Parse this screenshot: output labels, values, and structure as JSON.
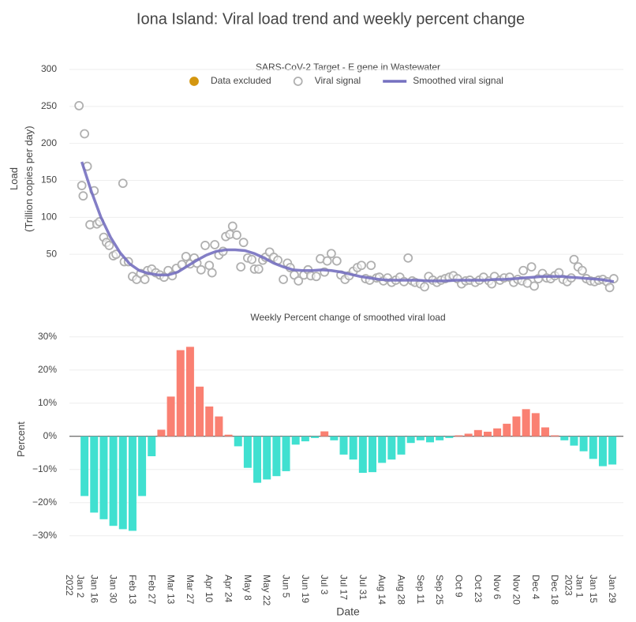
{
  "title": "Iona Island: Viral load trend and weekly percent change",
  "chart_data": [
    {
      "type": "scatter",
      "subtitle": "SARS-CoV-2 Target - E gene in Wastewater",
      "y_label": "Load\n(Trillion copies per day)",
      "xlim": [
        "2021-12-29",
        "2023-02-06"
      ],
      "ylim": [
        0,
        300
      ],
      "yticks": [
        50,
        100,
        150,
        200,
        250,
        300
      ],
      "grid": true,
      "series": [
        {
          "name": "Data excluded",
          "color": "#d4960f",
          "x": [],
          "values": []
        },
        {
          "name": "Viral signal",
          "color": "#b0b0b0",
          "x": [
            "2022-01-05",
            "2022-01-07",
            "2022-01-08",
            "2022-01-09",
            "2022-01-11",
            "2022-01-13",
            "2022-01-16",
            "2022-01-18",
            "2022-01-20",
            "2022-01-23",
            "2022-01-25",
            "2022-01-27",
            "2022-01-30",
            "2022-02-01",
            "2022-02-06",
            "2022-02-07",
            "2022-02-10",
            "2022-02-13",
            "2022-02-16",
            "2022-02-19",
            "2022-02-22",
            "2022-02-24",
            "2022-02-27",
            "2022-03-02",
            "2022-03-05",
            "2022-03-08",
            "2022-03-11",
            "2022-03-14",
            "2022-03-17",
            "2022-03-21",
            "2022-03-24",
            "2022-03-27",
            "2022-03-30",
            "2022-04-01",
            "2022-04-04",
            "2022-04-07",
            "2022-04-10",
            "2022-04-12",
            "2022-04-14",
            "2022-04-17",
            "2022-04-20",
            "2022-04-22",
            "2022-04-25",
            "2022-04-27",
            "2022-04-30",
            "2022-05-03",
            "2022-05-05",
            "2022-05-08",
            "2022-05-11",
            "2022-05-13",
            "2022-05-16",
            "2022-05-19",
            "2022-05-21",
            "2022-05-24",
            "2022-05-27",
            "2022-05-30",
            "2022-06-03",
            "2022-06-06",
            "2022-06-08",
            "2022-06-11",
            "2022-06-14",
            "2022-06-18",
            "2022-06-21",
            "2022-06-23",
            "2022-06-27",
            "2022-06-30",
            "2022-07-03",
            "2022-07-05",
            "2022-07-08",
            "2022-07-12",
            "2022-07-15",
            "2022-07-18",
            "2022-07-21",
            "2022-07-24",
            "2022-07-27",
            "2022-07-30",
            "2022-08-02",
            "2022-08-05",
            "2022-08-06",
            "2022-08-10",
            "2022-08-12",
            "2022-08-15",
            "2022-08-18",
            "2022-08-21",
            "2022-08-24",
            "2022-08-27",
            "2022-08-30",
            "2022-09-02",
            "2022-09-05",
            "2022-09-07",
            "2022-09-11",
            "2022-09-14",
            "2022-09-17",
            "2022-09-20",
            "2022-09-23",
            "2022-09-26",
            "2022-09-29",
            "2022-10-02",
            "2022-10-05",
            "2022-10-08",
            "2022-10-11",
            "2022-10-14",
            "2022-10-17",
            "2022-10-21",
            "2022-10-24",
            "2022-10-27",
            "2022-10-31",
            "2022-11-02",
            "2022-11-04",
            "2022-11-08",
            "2022-11-11",
            "2022-11-15",
            "2022-11-18",
            "2022-11-21",
            "2022-11-24",
            "2022-11-25",
            "2022-11-28",
            "2022-12-01",
            "2022-12-03",
            "2022-12-06",
            "2022-12-09",
            "2022-12-12",
            "2022-12-15",
            "2022-12-18",
            "2022-12-21",
            "2022-12-24",
            "2022-12-27",
            "2022-12-30",
            "2023-01-01",
            "2023-01-04",
            "2023-01-07",
            "2023-01-10",
            "2023-01-13",
            "2023-01-16",
            "2023-01-19",
            "2023-01-22",
            "2023-01-25",
            "2023-01-27",
            "2023-01-30"
          ],
          "values": [
            251,
            143,
            129,
            213,
            169,
            90,
            136,
            91,
            94,
            73,
            66,
            62,
            48,
            50,
            146,
            40,
            40,
            20,
            16,
            24,
            16,
            28,
            30,
            25,
            22,
            19,
            28,
            21,
            31,
            36,
            47,
            37,
            45,
            38,
            29,
            62,
            35,
            25,
            63,
            49,
            54,
            74,
            77,
            88,
            76,
            33,
            66,
            45,
            43,
            30,
            30,
            42,
            46,
            53,
            46,
            42,
            16,
            38,
            32,
            22,
            14,
            22,
            29,
            21,
            20,
            44,
            26,
            41,
            51,
            41,
            22,
            16,
            21,
            27,
            32,
            35,
            17,
            15,
            35,
            18,
            19,
            14,
            18,
            12,
            15,
            19,
            13,
            45,
            14,
            12,
            10,
            6,
            20,
            15,
            12,
            15,
            17,
            19,
            21,
            17,
            10,
            14,
            15,
            12,
            15,
            19,
            14,
            10,
            20,
            15,
            18,
            19,
            12,
            16,
            14,
            28,
            11,
            33,
            7,
            17,
            24,
            18,
            17,
            21,
            25,
            16,
            13,
            18,
            43,
            33,
            28,
            17,
            14,
            13,
            15,
            16,
            13,
            5,
            17
          ]
        },
        {
          "name": "Smoothed viral signal",
          "color": "#7570c0",
          "type": "line",
          "x": [
            "2022-01-07",
            "2022-01-14",
            "2022-01-21",
            "2022-01-28",
            "2022-02-04",
            "2022-02-11",
            "2022-02-18",
            "2022-02-25",
            "2022-03-04",
            "2022-03-11",
            "2022-03-18",
            "2022-03-25",
            "2022-04-01",
            "2022-04-08",
            "2022-04-15",
            "2022-04-22",
            "2022-04-29",
            "2022-05-06",
            "2022-05-13",
            "2022-05-20",
            "2022-05-27",
            "2022-06-03",
            "2022-06-10",
            "2022-06-17",
            "2022-06-24",
            "2022-07-01",
            "2022-07-08",
            "2022-07-15",
            "2022-07-22",
            "2022-07-29",
            "2022-08-05",
            "2022-08-12",
            "2022-08-19",
            "2022-08-26",
            "2022-09-02",
            "2022-09-09",
            "2022-09-16",
            "2022-09-23",
            "2022-09-30",
            "2022-10-07",
            "2022-10-14",
            "2022-10-21",
            "2022-10-28",
            "2022-11-04",
            "2022-11-11",
            "2022-11-18",
            "2022-11-25",
            "2022-12-02",
            "2022-12-09",
            "2022-12-16",
            "2022-12-23",
            "2022-12-30",
            "2023-01-06",
            "2023-01-13",
            "2023-01-20",
            "2023-01-27",
            "2023-01-30"
          ],
          "values": [
            175,
            135,
            100,
            73,
            52,
            37,
            28,
            24,
            22,
            22,
            26,
            34,
            42,
            49,
            54,
            56,
            56,
            55,
            51,
            45,
            38,
            33,
            29,
            28,
            28,
            29,
            28,
            26,
            23,
            20,
            18,
            16,
            15,
            15,
            15,
            15,
            14,
            14,
            14,
            15,
            15,
            15,
            15,
            16,
            16,
            17,
            18,
            19,
            20,
            20,
            20,
            19,
            18,
            17,
            16,
            14,
            13
          ]
        }
      ]
    },
    {
      "type": "bar",
      "subtitle": "Weekly Percent change of smoothed viral load",
      "y_label": "Percent",
      "x_label": "Date",
      "xlim": [
        "2021-12-29",
        "2023-02-06"
      ],
      "ylim": [
        -36,
        34
      ],
      "yticks": [
        {
          "value": -30,
          "label": "−30%"
        },
        {
          "value": -20,
          "label": "−20%"
        },
        {
          "value": -10,
          "label": "−10%"
        },
        {
          "value": 0,
          "label": "0%"
        },
        {
          "value": 10,
          "label": "10%"
        },
        {
          "value": 20,
          "label": "20%"
        },
        {
          "value": 30,
          "label": "30%"
        }
      ],
      "xticks": [
        {
          "value": "2022-01-02",
          "label": "Jan 2\n2022"
        },
        {
          "value": "2022-01-16",
          "label": "Jan 16"
        },
        {
          "value": "2022-01-30",
          "label": "Jan 30"
        },
        {
          "value": "2022-02-13",
          "label": "Feb 13"
        },
        {
          "value": "2022-02-27",
          "label": "Feb 27"
        },
        {
          "value": "2022-03-13",
          "label": "Mar 13"
        },
        {
          "value": "2022-03-27",
          "label": "Mar 27"
        },
        {
          "value": "2022-04-10",
          "label": "Apr 10"
        },
        {
          "value": "2022-04-24",
          "label": "Apr 24"
        },
        {
          "value": "2022-05-08",
          "label": "May 8"
        },
        {
          "value": "2022-05-22",
          "label": "May 22"
        },
        {
          "value": "2022-06-05",
          "label": "Jun 5"
        },
        {
          "value": "2022-06-19",
          "label": "Jun 19"
        },
        {
          "value": "2022-07-03",
          "label": "Jul 3"
        },
        {
          "value": "2022-07-17",
          "label": "Jul 17"
        },
        {
          "value": "2022-07-31",
          "label": "Jul 31"
        },
        {
          "value": "2022-08-14",
          "label": "Aug 14"
        },
        {
          "value": "2022-08-28",
          "label": "Aug 28"
        },
        {
          "value": "2022-09-11",
          "label": "Sep 11"
        },
        {
          "value": "2022-09-25",
          "label": "Sep 25"
        },
        {
          "value": "2022-10-09",
          "label": "Oct 9"
        },
        {
          "value": "2022-10-23",
          "label": "Oct 23"
        },
        {
          "value": "2022-11-06",
          "label": "Nov 6"
        },
        {
          "value": "2022-11-20",
          "label": "Nov 20"
        },
        {
          "value": "2022-12-04",
          "label": "Dec 4"
        },
        {
          "value": "2022-12-18",
          "label": "Dec 18"
        },
        {
          "value": "2023-01-01",
          "label": "Jan 1\n2023"
        },
        {
          "value": "2023-01-15",
          "label": "Jan 15"
        },
        {
          "value": "2023-01-29",
          "label": "Jan 29"
        }
      ],
      "grid": true,
      "positive_color": "#fa8072",
      "negative_color": "#40e0d0",
      "x": [
        "2022-01-09",
        "2022-01-16",
        "2022-01-23",
        "2022-01-30",
        "2022-02-06",
        "2022-02-13",
        "2022-02-20",
        "2022-02-27",
        "2022-03-06",
        "2022-03-13",
        "2022-03-20",
        "2022-03-27",
        "2022-04-03",
        "2022-04-10",
        "2022-04-17",
        "2022-04-24",
        "2022-05-01",
        "2022-05-08",
        "2022-05-15",
        "2022-05-22",
        "2022-05-29",
        "2022-06-05",
        "2022-06-12",
        "2022-06-19",
        "2022-06-26",
        "2022-07-03",
        "2022-07-10",
        "2022-07-17",
        "2022-07-24",
        "2022-07-31",
        "2022-08-07",
        "2022-08-14",
        "2022-08-21",
        "2022-08-28",
        "2022-09-04",
        "2022-09-11",
        "2022-09-18",
        "2022-09-25",
        "2022-10-02",
        "2022-10-09",
        "2022-10-16",
        "2022-10-23",
        "2022-10-30",
        "2022-11-06",
        "2022-11-13",
        "2022-11-20",
        "2022-11-27",
        "2022-12-04",
        "2022-12-11",
        "2022-12-18",
        "2022-12-25",
        "2023-01-01",
        "2023-01-08",
        "2023-01-15",
        "2023-01-22",
        "2023-01-29"
      ],
      "values": [
        -18,
        -23,
        -25,
        -27,
        -28,
        -28.5,
        -18,
        -6,
        2,
        12,
        26,
        27,
        15,
        9,
        6,
        0.5,
        -3,
        -9.5,
        -14,
        -13,
        -12,
        -10.5,
        -2.5,
        -1.5,
        -0.5,
        1.5,
        -1.2,
        -5.5,
        -7,
        -11,
        -10.8,
        -8,
        -7,
        -5.5,
        -2,
        -1.2,
        -1.8,
        -1.2,
        -0.5,
        0.3,
        0.8,
        1.9,
        1.4,
        2.4,
        3.8,
        6,
        8.2,
        7,
        2.7,
        0.3,
        -1.2,
        -2.8,
        -4.5,
        -6.8,
        -9,
        -8.5
      ]
    }
  ]
}
